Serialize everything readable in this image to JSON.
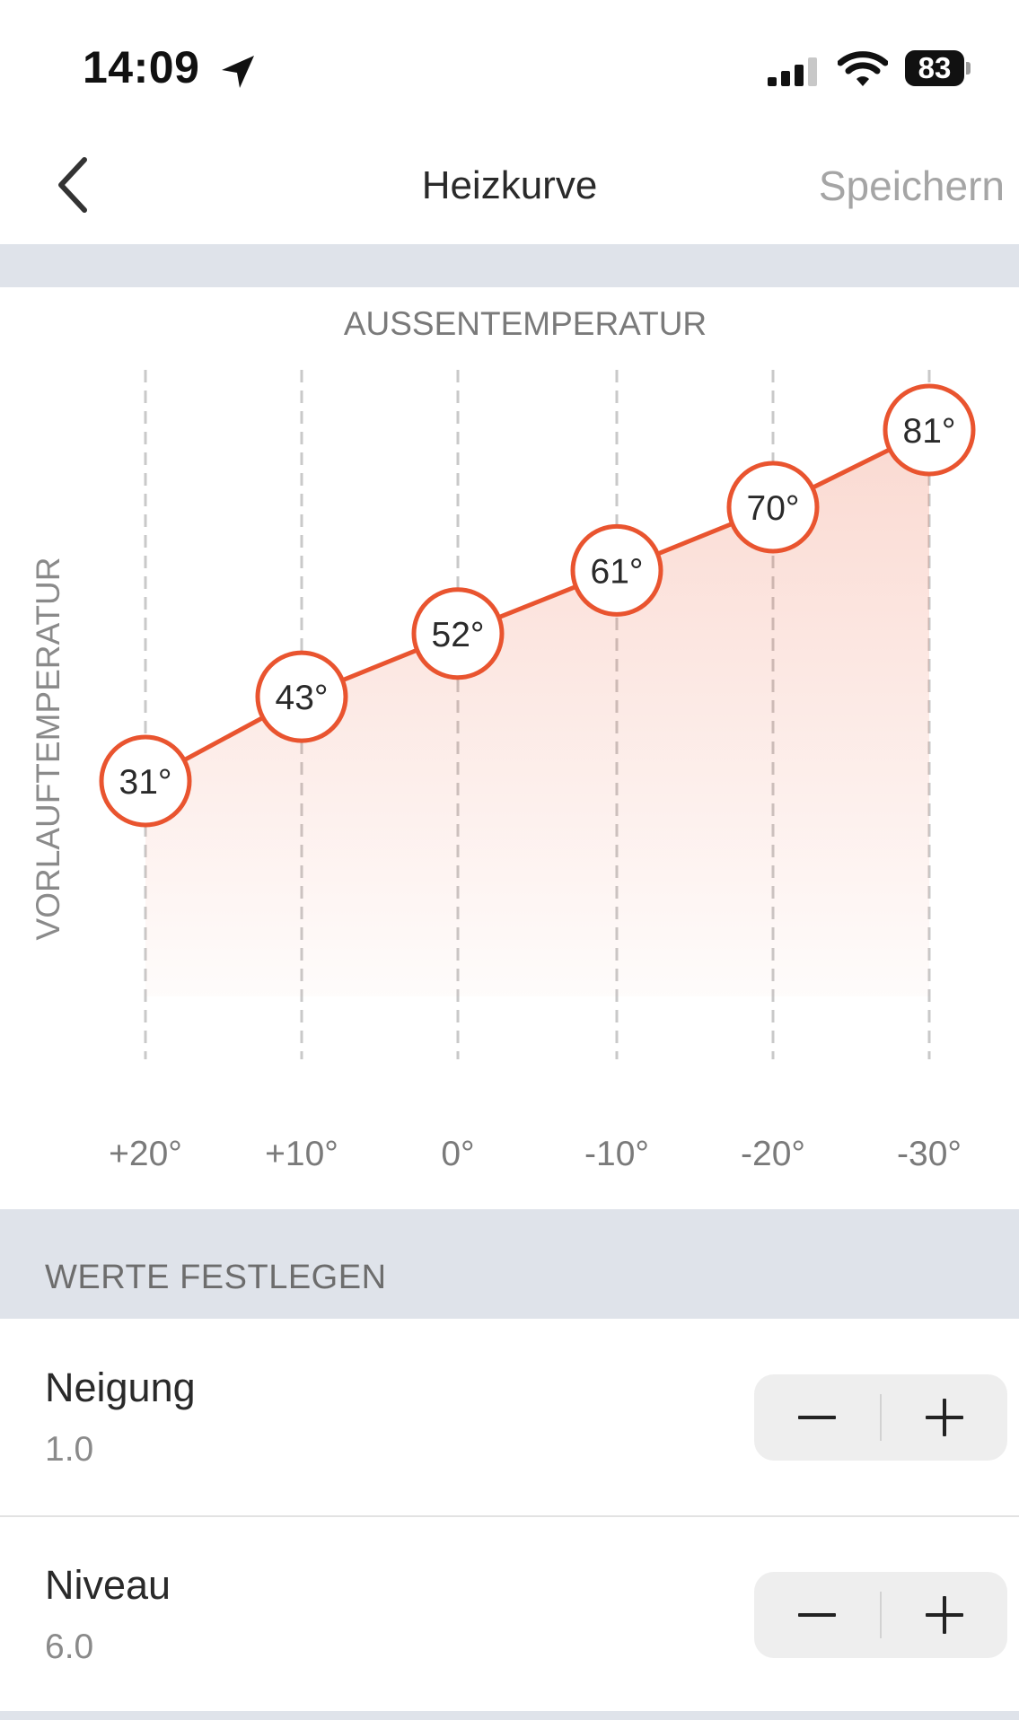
{
  "status_bar": {
    "time": "14:09",
    "battery": "83",
    "icons": [
      "location-arrow-icon",
      "cellular-signal-icon",
      "wifi-icon",
      "battery-icon"
    ]
  },
  "nav": {
    "back_icon": "chevron-left-icon",
    "title": "Heizkurve",
    "save_label": "Speichern"
  },
  "chart_data": {
    "type": "line",
    "title": "",
    "xlabel": "AUSSENTEMPERATUR",
    "ylabel": "VORLAUFTEMPERATUR",
    "x": [
      "+20°",
      "+10°",
      "0°",
      "-10°",
      "-20°",
      "-30°"
    ],
    "series": [
      {
        "values": [
          31,
          43,
          52,
          61,
          70,
          81
        ]
      }
    ],
    "point_labels": [
      "31°",
      "43°",
      "52°",
      "61°",
      "70°",
      "81°"
    ],
    "grid": "vertical dashed",
    "area_fill": true,
    "color": "#e9542f"
  },
  "section": {
    "title": "WERTE FESTLEGEN"
  },
  "rows": [
    {
      "label": "Neigung",
      "value": "1.0",
      "minus_icon": "minus-icon",
      "plus_icon": "plus-icon"
    },
    {
      "label": "Niveau",
      "value": "6.0",
      "minus_icon": "minus-icon",
      "plus_icon": "plus-icon"
    }
  ],
  "colors": {
    "accent": "#e9542f",
    "band": "#dfe3ea",
    "muted_text": "#8a8a8a",
    "save_disabled": "#a5a5a5"
  }
}
